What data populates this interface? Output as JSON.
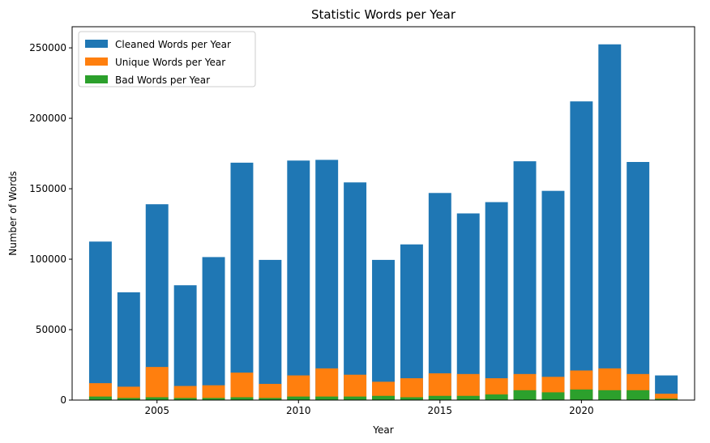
{
  "chart_data": {
    "type": "bar",
    "stacking": "overlaid",
    "title": "Statistic Words per Year",
    "xlabel": "Year",
    "ylabel": "Number of Words",
    "xlim": [
      2002,
      2024
    ],
    "ylim": [
      0,
      265000
    ],
    "xticks": [
      2005,
      2010,
      2015,
      2020
    ],
    "yticks": [
      0,
      50000,
      100000,
      150000,
      200000,
      250000
    ],
    "grid": false,
    "legend_position": "top-left",
    "x": [
      2003,
      2004,
      2005,
      2006,
      2007,
      2008,
      2009,
      2010,
      2011,
      2012,
      2013,
      2014,
      2015,
      2016,
      2017,
      2018,
      2019,
      2020,
      2021,
      2022,
      2023
    ],
    "series": [
      {
        "name": "Cleaned Words per Year",
        "color": "#1f77b4",
        "values": [
          112500,
          76500,
          139000,
          81500,
          101500,
          168500,
          99500,
          170000,
          170500,
          154500,
          99500,
          110500,
          147000,
          132500,
          140500,
          169500,
          148500,
          212000,
          252500,
          169000,
          17500
        ]
      },
      {
        "name": "Unique Words per Year",
        "color": "#ff7f0e",
        "values": [
          12000,
          9500,
          23500,
          10000,
          10500,
          19500,
          11500,
          17500,
          22500,
          18000,
          13000,
          15500,
          19000,
          18500,
          15500,
          18500,
          16500,
          21000,
          22500,
          18500,
          4500
        ]
      },
      {
        "name": "Bad Words per Year",
        "color": "#2ca02c",
        "values": [
          2500,
          1500,
          2000,
          1500,
          1500,
          2000,
          1500,
          2500,
          2500,
          2500,
          3000,
          2000,
          3000,
          3000,
          4000,
          7000,
          5500,
          7500,
          7000,
          7000,
          1000
        ]
      }
    ]
  }
}
